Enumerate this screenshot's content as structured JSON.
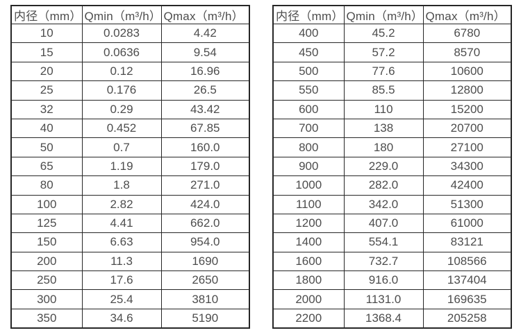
{
  "colors": {
    "bg": "#ffffff",
    "border": "#262626",
    "text": "#4d4d4d"
  },
  "chart_data": [
    {
      "type": "table",
      "name": "flow-rate-table-small-diameters",
      "columns": [
        "内径（mm）",
        "Qmin（m³/h）",
        "Qmax（m³/h）"
      ],
      "rows": [
        [
          "10",
          "0.0283",
          "4.42"
        ],
        [
          "15",
          "0.0636",
          "9.54"
        ],
        [
          "20",
          "0.12",
          "16.96"
        ],
        [
          "25",
          "0.176",
          "26.5"
        ],
        [
          "32",
          "0.29",
          "43.42"
        ],
        [
          "40",
          "0.452",
          "67.85"
        ],
        [
          "50",
          "0.7",
          "160.0"
        ],
        [
          "65",
          "1.19",
          "179.0"
        ],
        [
          "80",
          "1.8",
          "271.0"
        ],
        [
          "100",
          "2.82",
          "424.0"
        ],
        [
          "125",
          "4.41",
          "662.0"
        ],
        [
          "150",
          "6.63",
          "954.0"
        ],
        [
          "200",
          "11.3",
          "1690"
        ],
        [
          "250",
          "17.6",
          "2650"
        ],
        [
          "300",
          "25.4",
          "3810"
        ],
        [
          "350",
          "34.6",
          "5190"
        ]
      ]
    },
    {
      "type": "table",
      "name": "flow-rate-table-large-diameters",
      "columns": [
        "内径（mm）",
        "Qmin（m³/h）",
        "Qmax（m³/h）"
      ],
      "rows": [
        [
          "400",
          "45.2",
          "6780"
        ],
        [
          "450",
          "57.2",
          "8570"
        ],
        [
          "500",
          "77.6",
          "10600"
        ],
        [
          "550",
          "85.5",
          "12800"
        ],
        [
          "600",
          "110",
          "15200"
        ],
        [
          "700",
          "138",
          "20700"
        ],
        [
          "800",
          "180",
          "27100"
        ],
        [
          "900",
          "229.0",
          "34300"
        ],
        [
          "1000",
          "282.0",
          "42400"
        ],
        [
          "1100",
          "342.0",
          "51300"
        ],
        [
          "1200",
          "407.0",
          "61000"
        ],
        [
          "1400",
          "554.1",
          "83121"
        ],
        [
          "1600",
          "732.7",
          "108566"
        ],
        [
          "1800",
          "916.0",
          "137404"
        ],
        [
          "2000",
          "1131.0",
          "169635"
        ],
        [
          "2200",
          "1368.4",
          "205258"
        ]
      ]
    }
  ]
}
